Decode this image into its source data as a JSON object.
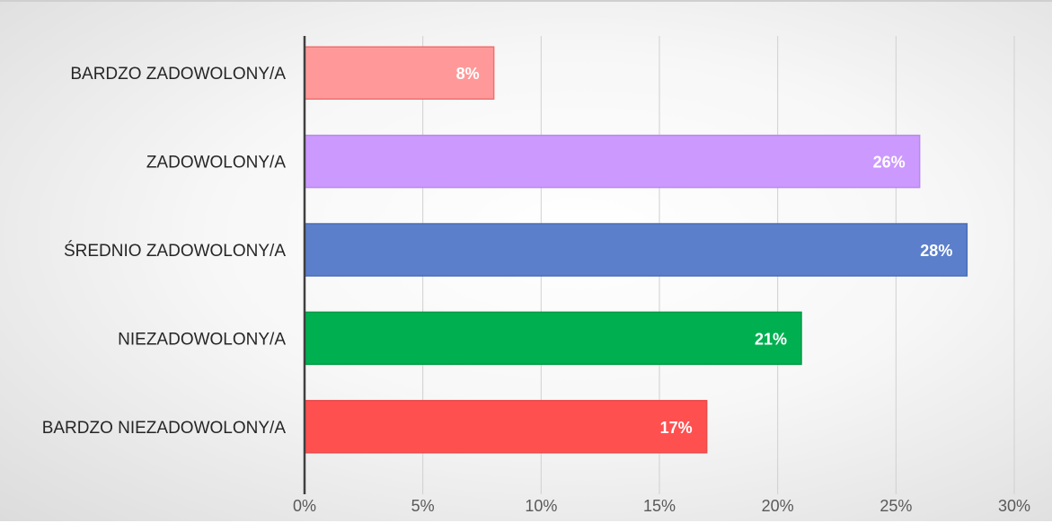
{
  "chart_data": {
    "type": "bar",
    "orientation": "horizontal",
    "categories": [
      "BARDZO ZADOWOLONY/A",
      "ZADOWOLONY/A",
      "ŚREDNIO ZADOWOLONY/A",
      "NIEZADOWOLONY/A",
      "BARDZO NIEZADOWOLONY/A"
    ],
    "values": [
      8,
      26,
      28,
      21,
      17
    ],
    "data_labels": [
      "8%",
      "26%",
      "28%",
      "21%",
      "17%"
    ],
    "bar_colors": [
      "#ff9999",
      "#cc99ff",
      "#5b7fcb",
      "#00b050",
      "#ff5050"
    ],
    "bar_border_colors": [
      "#f07070",
      "#b98ae8",
      "#4a6db8",
      "#009a45",
      "#e84a4a"
    ],
    "xlim": [
      0,
      30
    ],
    "x_ticks": [
      0,
      5,
      10,
      15,
      20,
      25,
      30
    ],
    "x_tick_labels": [
      "0%",
      "5%",
      "10%",
      "15%",
      "20%",
      "25%",
      "30%"
    ],
    "grid": "vertical",
    "legend": "none",
    "title": "",
    "xlabel": "",
    "ylabel": ""
  }
}
